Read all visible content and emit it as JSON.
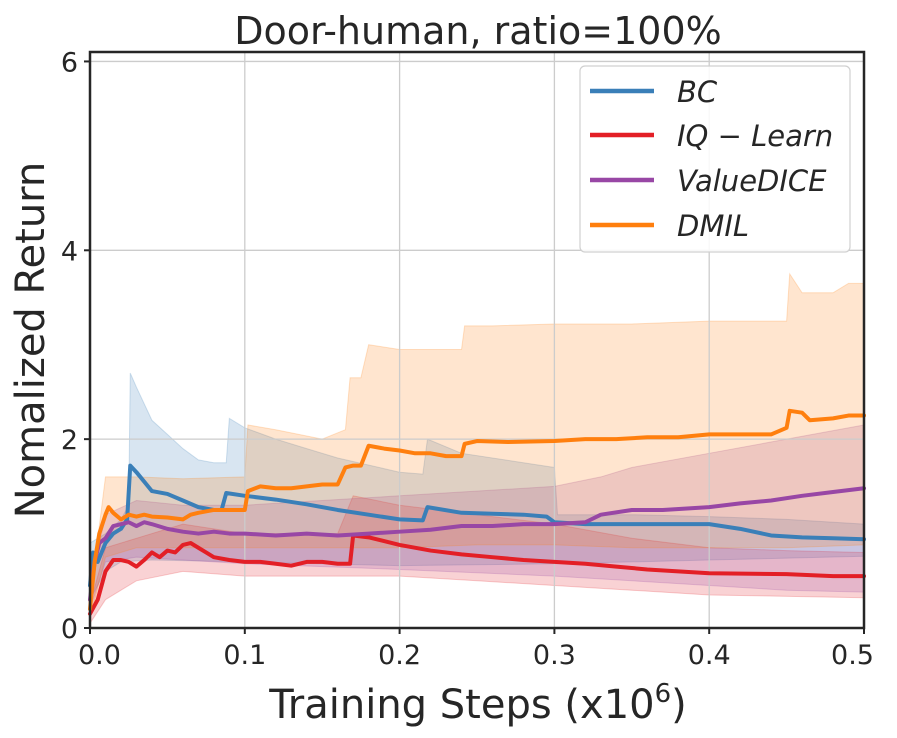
{
  "chart_data": {
    "type": "line",
    "title": "Door-human, ratio=100%",
    "xlabel": "Training Steps (x10",
    "xlabel_exponent": "6",
    "xlabel_suffix": ")",
    "ylabel": "Nomalized Return",
    "xlim": [
      0,
      0.5
    ],
    "ylim": [
      0,
      6.1
    ],
    "x_ticks": [
      0,
      0.1,
      0.2,
      0.3,
      0.4,
      0.5
    ],
    "x_tick_labels": [
      "0.0",
      "0.1",
      "0.2",
      "0.3",
      "0.4",
      "0.5"
    ],
    "y_ticks": [
      0,
      2,
      4,
      6
    ],
    "y_tick_labels": [
      "0",
      "2",
      "4",
      "6"
    ],
    "grid": true,
    "legend_position": "top-right",
    "series": [
      {
        "name": "BC",
        "legend_label": "BC",
        "color": "#3a7fb8",
        "points": [
          [
            0,
            0.45
          ],
          [
            0.002,
            0.8
          ],
          [
            0.005,
            0.7
          ],
          [
            0.01,
            0.9
          ],
          [
            0.015,
            1.0
          ],
          [
            0.02,
            1.05
          ],
          [
            0.024,
            1.15
          ],
          [
            0.026,
            1.72
          ],
          [
            0.03,
            1.65
          ],
          [
            0.035,
            1.55
          ],
          [
            0.04,
            1.45
          ],
          [
            0.05,
            1.42
          ],
          [
            0.06,
            1.35
          ],
          [
            0.07,
            1.28
          ],
          [
            0.08,
            1.25
          ],
          [
            0.085,
            1.25
          ],
          [
            0.088,
            1.43
          ],
          [
            0.1,
            1.4
          ],
          [
            0.12,
            1.36
          ],
          [
            0.14,
            1.31
          ],
          [
            0.16,
            1.25
          ],
          [
            0.18,
            1.2
          ],
          [
            0.2,
            1.15
          ],
          [
            0.215,
            1.14
          ],
          [
            0.218,
            1.28
          ],
          [
            0.24,
            1.22
          ],
          [
            0.26,
            1.21
          ],
          [
            0.28,
            1.2
          ],
          [
            0.295,
            1.18
          ],
          [
            0.3,
            1.12
          ],
          [
            0.32,
            1.1
          ],
          [
            0.35,
            1.1
          ],
          [
            0.38,
            1.1
          ],
          [
            0.4,
            1.1
          ],
          [
            0.42,
            1.05
          ],
          [
            0.44,
            0.98
          ],
          [
            0.46,
            0.96
          ],
          [
            0.48,
            0.95
          ],
          [
            0.5,
            0.94
          ]
        ],
        "lower": [
          [
            0,
            0.3
          ],
          [
            0.01,
            0.6
          ],
          [
            0.02,
            0.7
          ],
          [
            0.04,
            0.72
          ],
          [
            0.1,
            0.7
          ],
          [
            0.2,
            0.66
          ],
          [
            0.3,
            0.68
          ],
          [
            0.4,
            0.72
          ],
          [
            0.5,
            0.76
          ]
        ],
        "upper": [
          [
            0,
            0.9
          ],
          [
            0.01,
            1.0
          ],
          [
            0.02,
            1.15
          ],
          [
            0.025,
            1.3
          ],
          [
            0.026,
            2.7
          ],
          [
            0.03,
            2.55
          ],
          [
            0.04,
            2.2
          ],
          [
            0.05,
            2.05
          ],
          [
            0.06,
            1.9
          ],
          [
            0.07,
            1.78
          ],
          [
            0.08,
            1.75
          ],
          [
            0.088,
            1.75
          ],
          [
            0.09,
            2.22
          ],
          [
            0.1,
            2.12
          ],
          [
            0.12,
            2.0
          ],
          [
            0.14,
            1.9
          ],
          [
            0.16,
            1.8
          ],
          [
            0.2,
            1.65
          ],
          [
            0.215,
            1.63
          ],
          [
            0.218,
            2.0
          ],
          [
            0.24,
            1.85
          ],
          [
            0.28,
            1.75
          ],
          [
            0.3,
            1.7
          ],
          [
            0.302,
            1.2
          ],
          [
            0.35,
            1.2
          ],
          [
            0.4,
            1.18
          ],
          [
            0.45,
            1.15
          ],
          [
            0.5,
            1.1
          ]
        ]
      },
      {
        "name": "IQ-Learn",
        "legend_label": "IQ − Learn",
        "color": "#e31f26",
        "points": [
          [
            0,
            0.15
          ],
          [
            0.005,
            0.3
          ],
          [
            0.01,
            0.6
          ],
          [
            0.015,
            0.72
          ],
          [
            0.02,
            0.72
          ],
          [
            0.025,
            0.7
          ],
          [
            0.03,
            0.65
          ],
          [
            0.035,
            0.72
          ],
          [
            0.04,
            0.8
          ],
          [
            0.045,
            0.75
          ],
          [
            0.05,
            0.82
          ],
          [
            0.055,
            0.8
          ],
          [
            0.06,
            0.88
          ],
          [
            0.065,
            0.9
          ],
          [
            0.07,
            0.85
          ],
          [
            0.075,
            0.8
          ],
          [
            0.08,
            0.75
          ],
          [
            0.09,
            0.72
          ],
          [
            0.1,
            0.7
          ],
          [
            0.11,
            0.7
          ],
          [
            0.12,
            0.68
          ],
          [
            0.13,
            0.66
          ],
          [
            0.14,
            0.7
          ],
          [
            0.15,
            0.7
          ],
          [
            0.16,
            0.68
          ],
          [
            0.168,
            0.68
          ],
          [
            0.17,
            0.98
          ],
          [
            0.18,
            0.96
          ],
          [
            0.2,
            0.88
          ],
          [
            0.22,
            0.82
          ],
          [
            0.24,
            0.78
          ],
          [
            0.26,
            0.75
          ],
          [
            0.28,
            0.72
          ],
          [
            0.3,
            0.7
          ],
          [
            0.32,
            0.68
          ],
          [
            0.34,
            0.65
          ],
          [
            0.36,
            0.62
          ],
          [
            0.38,
            0.6
          ],
          [
            0.4,
            0.58
          ],
          [
            0.45,
            0.57
          ],
          [
            0.48,
            0.55
          ],
          [
            0.5,
            0.55
          ]
        ],
        "lower": [
          [
            0,
            0.05
          ],
          [
            0.01,
            0.3
          ],
          [
            0.03,
            0.5
          ],
          [
            0.06,
            0.6
          ],
          [
            0.1,
            0.55
          ],
          [
            0.16,
            0.55
          ],
          [
            0.2,
            0.55
          ],
          [
            0.25,
            0.5
          ],
          [
            0.3,
            0.45
          ],
          [
            0.35,
            0.4
          ],
          [
            0.4,
            0.35
          ],
          [
            0.5,
            0.32
          ]
        ],
        "upper": [
          [
            0,
            0.25
          ],
          [
            0.01,
            0.85
          ],
          [
            0.03,
            0.95
          ],
          [
            0.06,
            1.1
          ],
          [
            0.1,
            1.0
          ],
          [
            0.16,
            1.0
          ],
          [
            0.17,
            1.4
          ],
          [
            0.2,
            1.3
          ],
          [
            0.25,
            1.2
          ],
          [
            0.3,
            1.1
          ],
          [
            0.35,
            0.95
          ],
          [
            0.4,
            0.85
          ],
          [
            0.45,
            0.82
          ],
          [
            0.5,
            0.8
          ]
        ]
      },
      {
        "name": "ValueDICE",
        "legend_label": "ValueDICE",
        "color": "#9847a5",
        "points": [
          [
            0,
            0.3
          ],
          [
            0.003,
            0.7
          ],
          [
            0.006,
            0.9
          ],
          [
            0.01,
            0.95
          ],
          [
            0.015,
            1.08
          ],
          [
            0.02,
            1.1
          ],
          [
            0.025,
            1.12
          ],
          [
            0.03,
            1.08
          ],
          [
            0.035,
            1.12
          ],
          [
            0.04,
            1.1
          ],
          [
            0.05,
            1.05
          ],
          [
            0.06,
            1.02
          ],
          [
            0.07,
            1.0
          ],
          [
            0.08,
            1.02
          ],
          [
            0.09,
            1.0
          ],
          [
            0.1,
            1.0
          ],
          [
            0.12,
            0.98
          ],
          [
            0.14,
            1.0
          ],
          [
            0.16,
            0.98
          ],
          [
            0.18,
            1.0
          ],
          [
            0.2,
            1.02
          ],
          [
            0.22,
            1.04
          ],
          [
            0.24,
            1.08
          ],
          [
            0.26,
            1.08
          ],
          [
            0.28,
            1.1
          ],
          [
            0.3,
            1.1
          ],
          [
            0.32,
            1.12
          ],
          [
            0.33,
            1.2
          ],
          [
            0.35,
            1.25
          ],
          [
            0.37,
            1.25
          ],
          [
            0.4,
            1.28
          ],
          [
            0.42,
            1.32
          ],
          [
            0.44,
            1.35
          ],
          [
            0.46,
            1.4
          ],
          [
            0.48,
            1.44
          ],
          [
            0.5,
            1.48
          ]
        ],
        "lower": [
          [
            0,
            0.2
          ],
          [
            0.01,
            0.7
          ],
          [
            0.03,
            0.75
          ],
          [
            0.06,
            0.72
          ],
          [
            0.1,
            0.68
          ],
          [
            0.2,
            0.62
          ],
          [
            0.3,
            0.55
          ],
          [
            0.4,
            0.45
          ],
          [
            0.45,
            0.4
          ],
          [
            0.5,
            0.38
          ]
        ],
        "upper": [
          [
            0,
            0.4
          ],
          [
            0.01,
            1.2
          ],
          [
            0.03,
            1.35
          ],
          [
            0.06,
            1.3
          ],
          [
            0.1,
            1.3
          ],
          [
            0.2,
            1.4
          ],
          [
            0.3,
            1.5
          ],
          [
            0.33,
            1.6
          ],
          [
            0.35,
            1.7
          ],
          [
            0.4,
            1.85
          ],
          [
            0.45,
            2.0
          ],
          [
            0.5,
            2.15
          ]
        ]
      },
      {
        "name": "DMIL",
        "legend_label": "DMIL",
        "color": "#ff7f0e",
        "points": [
          [
            0,
            0.2
          ],
          [
            0.003,
            0.7
          ],
          [
            0.006,
            1.0
          ],
          [
            0.01,
            1.2
          ],
          [
            0.012,
            1.28
          ],
          [
            0.015,
            1.22
          ],
          [
            0.02,
            1.15
          ],
          [
            0.025,
            1.2
          ],
          [
            0.03,
            1.18
          ],
          [
            0.035,
            1.2
          ],
          [
            0.04,
            1.18
          ],
          [
            0.05,
            1.17
          ],
          [
            0.06,
            1.15
          ],
          [
            0.065,
            1.2
          ],
          [
            0.07,
            1.22
          ],
          [
            0.08,
            1.25
          ],
          [
            0.09,
            1.25
          ],
          [
            0.1,
            1.25
          ],
          [
            0.102,
            1.45
          ],
          [
            0.11,
            1.5
          ],
          [
            0.12,
            1.48
          ],
          [
            0.13,
            1.48
          ],
          [
            0.14,
            1.5
          ],
          [
            0.15,
            1.52
          ],
          [
            0.16,
            1.52
          ],
          [
            0.165,
            1.7
          ],
          [
            0.17,
            1.72
          ],
          [
            0.175,
            1.72
          ],
          [
            0.18,
            1.93
          ],
          [
            0.19,
            1.9
          ],
          [
            0.2,
            1.88
          ],
          [
            0.21,
            1.85
          ],
          [
            0.22,
            1.85
          ],
          [
            0.23,
            1.82
          ],
          [
            0.24,
            1.82
          ],
          [
            0.242,
            1.95
          ],
          [
            0.25,
            1.98
          ],
          [
            0.27,
            1.97
          ],
          [
            0.3,
            1.98
          ],
          [
            0.32,
            2.0
          ],
          [
            0.34,
            2.0
          ],
          [
            0.36,
            2.02
          ],
          [
            0.38,
            2.02
          ],
          [
            0.4,
            2.05
          ],
          [
            0.42,
            2.05
          ],
          [
            0.44,
            2.05
          ],
          [
            0.45,
            2.12
          ],
          [
            0.452,
            2.3
          ],
          [
            0.46,
            2.28
          ],
          [
            0.465,
            2.2
          ],
          [
            0.48,
            2.22
          ],
          [
            0.49,
            2.25
          ],
          [
            0.5,
            2.25
          ]
        ],
        "lower": [
          [
            0,
            0.1
          ],
          [
            0.01,
            0.75
          ],
          [
            0.03,
            0.85
          ],
          [
            0.06,
            0.85
          ],
          [
            0.1,
            0.85
          ],
          [
            0.15,
            0.85
          ],
          [
            0.2,
            0.85
          ],
          [
            0.25,
            0.88
          ],
          [
            0.3,
            0.88
          ],
          [
            0.35,
            0.85
          ],
          [
            0.4,
            0.85
          ],
          [
            0.45,
            0.85
          ],
          [
            0.5,
            0.88
          ]
        ],
        "upper": [
          [
            0,
            0.3
          ],
          [
            0.01,
            1.6
          ],
          [
            0.03,
            1.6
          ],
          [
            0.06,
            1.58
          ],
          [
            0.1,
            1.6
          ],
          [
            0.102,
            2.15
          ],
          [
            0.12,
            2.1
          ],
          [
            0.15,
            2.0
          ],
          [
            0.165,
            2.1
          ],
          [
            0.168,
            2.65
          ],
          [
            0.175,
            2.65
          ],
          [
            0.18,
            3.0
          ],
          [
            0.2,
            2.95
          ],
          [
            0.22,
            2.95
          ],
          [
            0.24,
            2.95
          ],
          [
            0.242,
            3.2
          ],
          [
            0.26,
            3.2
          ],
          [
            0.3,
            3.22
          ],
          [
            0.35,
            3.22
          ],
          [
            0.4,
            3.25
          ],
          [
            0.45,
            3.25
          ],
          [
            0.452,
            3.75
          ],
          [
            0.46,
            3.55
          ],
          [
            0.48,
            3.55
          ],
          [
            0.49,
            3.65
          ],
          [
            0.5,
            3.65
          ]
        ]
      }
    ]
  }
}
